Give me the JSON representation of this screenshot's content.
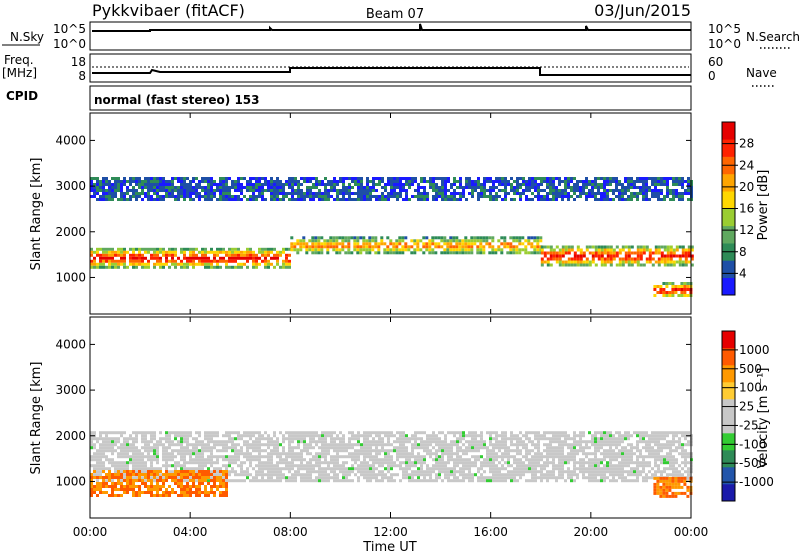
{
  "header": {
    "station": "Pykkvibaer (fitACF)",
    "beam": "Beam 07",
    "date": "03/Jun/2015"
  },
  "top_panels": {
    "nsky_label": "N.Sky",
    "nsky_ticks": [
      "10^5",
      "10^0"
    ],
    "nsearch_label": "N.Search",
    "nsearch_ticks": [
      "10^5",
      "10^0"
    ],
    "freq_label_1": "Freq.",
    "freq_label_2": "[MHz]",
    "freq_ticks": [
      "18",
      "8"
    ],
    "nave_label": "Nave",
    "nave_ticks": [
      "60",
      "0"
    ],
    "cpid_label": "CPID",
    "cpid_text": "normal (fast stereo) 153"
  },
  "colors": {
    "power": [
      "#1a1aff",
      "#1e4fa6",
      "#2e8b57",
      "#5fa85f",
      "#9acd32",
      "#ffd700",
      "#ffa500",
      "#ff6600",
      "#ff2200",
      "#e60000"
    ],
    "velocity": [
      "#e60000",
      "#ff5a00",
      "#ff9900",
      "#ffcc33",
      "#c8c8c8",
      "#c8c8c8",
      "#33cc33",
      "#2e8b57",
      "#2255aa",
      "#1a1aaa"
    ]
  },
  "chart_data": [
    {
      "type": "heatmap",
      "name": "power",
      "ylabel": "Slant Range [km]",
      "xlim": [
        "00:00",
        "24:00"
      ],
      "ylim": [
        200,
        4600
      ],
      "yticks": [
        1000,
        2000,
        3000,
        4000
      ],
      "colorbar": {
        "label": "Power [dB]",
        "range": [
          0,
          32
        ],
        "ticks": [
          4,
          8,
          12,
          16,
          20,
          24,
          28
        ]
      },
      "regions": [
        {
          "t0": 0,
          "t1": 8,
          "r0": 1250,
          "r1": 1650,
          "level": "high"
        },
        {
          "t0": 8,
          "t1": 18,
          "r0": 1550,
          "r1": 1900,
          "level": "medium"
        },
        {
          "t0": 18,
          "t1": 24,
          "r0": 1300,
          "r1": 1700,
          "level": "high"
        },
        {
          "t0": 0,
          "t1": 24,
          "r0": 2700,
          "r1": 3200,
          "level": "low"
        },
        {
          "t0": 22.5,
          "t1": 24,
          "r0": 600,
          "r1": 900,
          "level": "high"
        }
      ]
    },
    {
      "type": "heatmap",
      "name": "velocity",
      "ylabel": "Slant Range [km]",
      "xlabel": "Time UT",
      "xlim": [
        "00:00",
        "24:00"
      ],
      "ylim": [
        200,
        4600
      ],
      "yticks": [
        1000,
        2000,
        3000,
        4000
      ],
      "xticks": [
        "00:00",
        "04:00",
        "08:00",
        "12:00",
        "16:00",
        "20:00",
        "00:00"
      ],
      "colorbar": {
        "label": "Velocity [m s⁻¹]",
        "ticks": [
          "1000",
          "500",
          "100",
          "25",
          "-25",
          "-100",
          "-500",
          "-1000"
        ]
      },
      "regions": [
        {
          "t0": 0,
          "t1": 24,
          "r0": 1000,
          "r1": 2100,
          "level": "ground"
        },
        {
          "t0": 0,
          "t1": 5.5,
          "r0": 700,
          "r1": 1250,
          "level": "away"
        },
        {
          "t0": 22.5,
          "t1": 24,
          "r0": 700,
          "r1": 1100,
          "level": "away"
        }
      ]
    }
  ]
}
